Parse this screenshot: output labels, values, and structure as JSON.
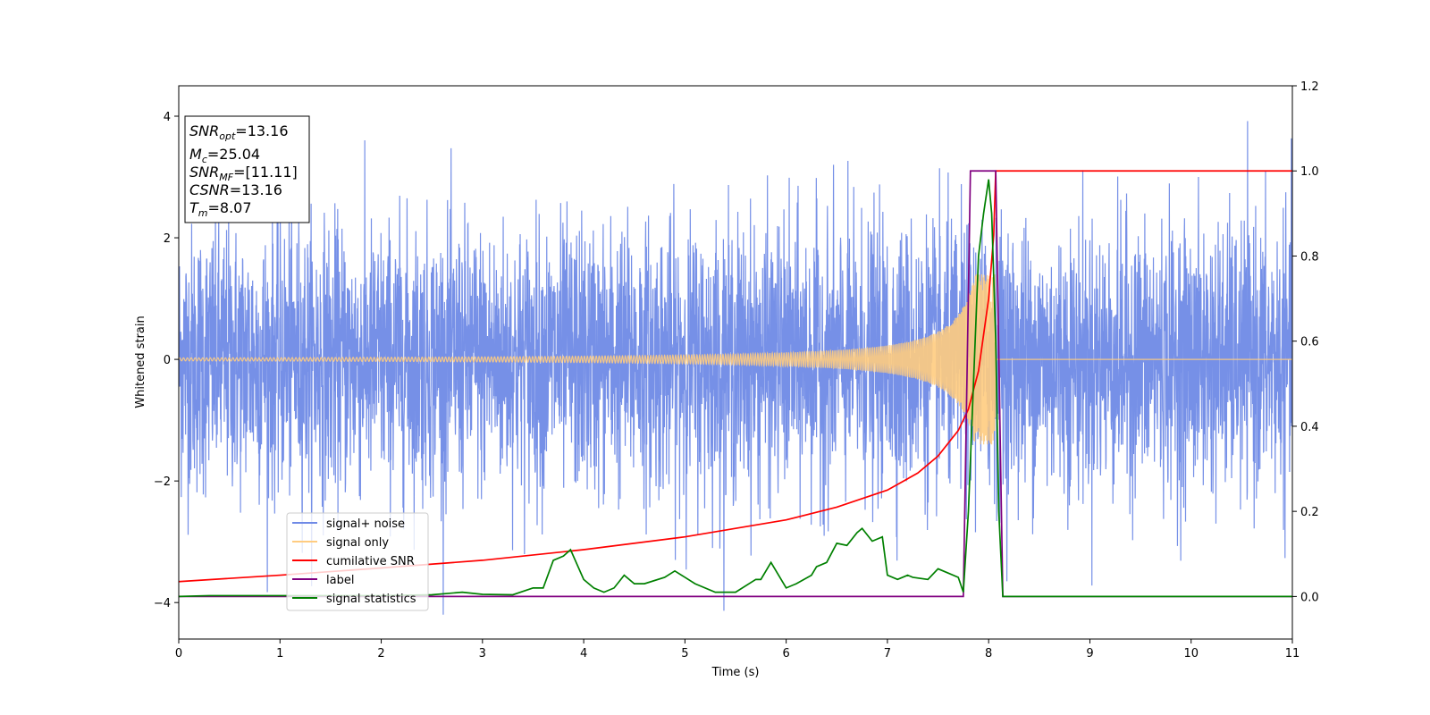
{
  "chart_data": {
    "type": "line",
    "xlabel": "Time (s)",
    "ylabel": "Whitened strain",
    "xlim": [
      0,
      11
    ],
    "ylim": [
      -4.6,
      4.5
    ],
    "y2lim": [
      -0.1,
      1.2
    ],
    "xticks": [
      "0",
      "1",
      "2",
      "3",
      "4",
      "5",
      "6",
      "7",
      "8",
      "9",
      "10",
      "11"
    ],
    "yticks": [
      "−4",
      "−2",
      "0",
      "2",
      "4"
    ],
    "y2ticks": [
      "0.0",
      "0.2",
      "0.4",
      "0.6",
      "0.8",
      "1.0",
      "1.2"
    ],
    "grid": false,
    "legend_position": "lower-left",
    "info_box": {
      "snr_opt": {
        "base": "SNR",
        "sub": "opt",
        "value": "=13.16"
      },
      "mc": {
        "base": "M",
        "sub": "c",
        "value": "=25.04"
      },
      "snr_mf": {
        "base": "SNR",
        "sub": "MF",
        "value": "=[11.11]"
      },
      "csnr": {
        "base": "CSNR",
        "sub": "",
        "value": "=13.16"
      },
      "tm": {
        "base": "T",
        "sub": "m",
        "value": "=8.07"
      }
    },
    "series": [
      {
        "name": "signal+ noise",
        "color": "#6f8ae6",
        "axis": "left",
        "description_values": "white noise, std ~1.1, range approx -4.2 to 4.1"
      },
      {
        "name": "signal only",
        "color": "#ffcc80",
        "axis": "left",
        "chirp_end": 8.07
      },
      {
        "name": "cumilative SNR",
        "color": "#ff0000",
        "axis": "right",
        "x": [
          0,
          1,
          2,
          3,
          4,
          5,
          6,
          6.5,
          7,
          7.3,
          7.5,
          7.7,
          7.8,
          7.9,
          8.0,
          8.05,
          8.07,
          8.1,
          9,
          10,
          11
        ],
        "y": [
          0.035,
          0.05,
          0.067,
          0.085,
          0.11,
          0.14,
          0.18,
          0.21,
          0.25,
          0.29,
          0.33,
          0.39,
          0.44,
          0.53,
          0.7,
          0.85,
          1.0,
          1.0,
          1.0,
          1.0,
          1.0
        ]
      },
      {
        "name": "label",
        "color": "#800080",
        "axis": "right",
        "x": [
          0,
          7.75,
          7.82,
          8.07,
          8.14,
          11
        ],
        "y": [
          0,
          0,
          1.0,
          1.0,
          0,
          0
        ]
      },
      {
        "name": "signal statistics",
        "color": "#008000",
        "axis": "right",
        "x": [
          0,
          0.3,
          1.0,
          2.0,
          2.5,
          2.8,
          3.0,
          3.3,
          3.5,
          3.6,
          3.7,
          3.8,
          3.87,
          4.0,
          4.1,
          4.2,
          4.3,
          4.4,
          4.5,
          4.6,
          4.8,
          4.9,
          5.0,
          5.1,
          5.3,
          5.5,
          5.7,
          5.75,
          5.85,
          6.0,
          6.1,
          6.25,
          6.3,
          6.4,
          6.5,
          6.6,
          6.7,
          6.75,
          6.85,
          6.95,
          7.0,
          7.1,
          7.2,
          7.25,
          7.4,
          7.5,
          7.6,
          7.7,
          7.75,
          7.8,
          7.85,
          7.9,
          7.95,
          8.0,
          8.03,
          8.07,
          8.1,
          8.14,
          9.0,
          10.0,
          11.0
        ],
        "y": [
          0.0,
          0.002,
          0.002,
          0.002,
          0.004,
          0.01,
          0.005,
          0.004,
          0.02,
          0.02,
          0.085,
          0.095,
          0.11,
          0.04,
          0.02,
          0.01,
          0.02,
          0.05,
          0.03,
          0.03,
          0.045,
          0.06,
          0.045,
          0.03,
          0.01,
          0.01,
          0.04,
          0.04,
          0.08,
          0.02,
          0.03,
          0.05,
          0.07,
          0.08,
          0.125,
          0.12,
          0.15,
          0.16,
          0.13,
          0.14,
          0.05,
          0.04,
          0.05,
          0.045,
          0.04,
          0.065,
          0.055,
          0.045,
          0.01,
          0.2,
          0.5,
          0.8,
          0.9,
          0.98,
          0.9,
          0.6,
          0.2,
          0.0,
          0.0,
          0.0,
          0.0
        ]
      }
    ]
  }
}
